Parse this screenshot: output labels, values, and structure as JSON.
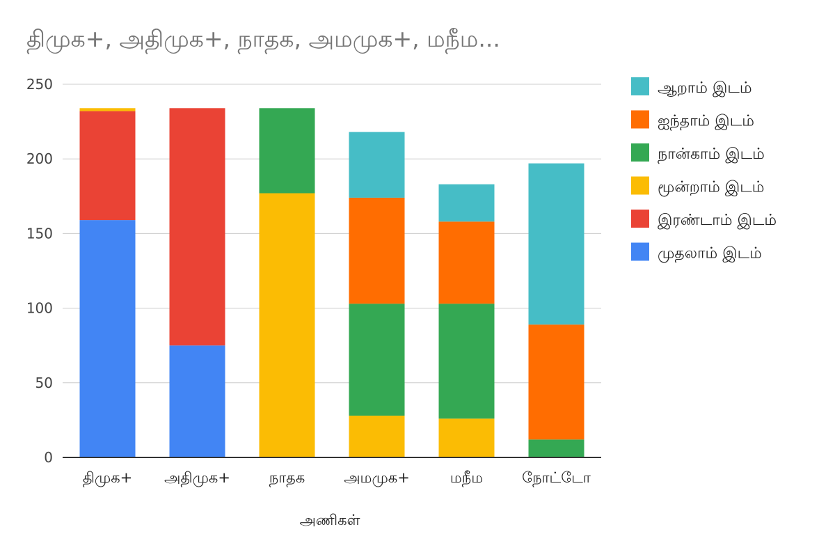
{
  "chart_data": {
    "type": "bar",
    "stacked": true,
    "title": "திமுக+, அதிமுக+, நாதக, அமமுக+, மநீம...",
    "xlabel": "அணிகள்",
    "ylabel": "",
    "ylim": [
      0,
      250
    ],
    "yticks": [
      0,
      50,
      100,
      150,
      200,
      250
    ],
    "grid": true,
    "legend_position": "right",
    "categories": [
      "திமுக+",
      "அதிமுக+",
      "நாதக",
      "அமமுக+",
      "மநீம",
      "நோட்டோ"
    ],
    "series": [
      {
        "name": "முதலாம் இடம்",
        "color": "#4285F4",
        "values": [
          159,
          75,
          0,
          0,
          0,
          0
        ]
      },
      {
        "name": "இரண்டாம் இடம்",
        "color": "#EA4335",
        "values": [
          73,
          159,
          0,
          0,
          0,
          0
        ]
      },
      {
        "name": "மூன்றாம் இடம்",
        "color": "#FBBC04",
        "values": [
          2,
          0,
          177,
          28,
          26,
          0
        ]
      },
      {
        "name": "நான்காம் இடம்",
        "color": "#34A853",
        "values": [
          0,
          0,
          57,
          75,
          77,
          12
        ]
      },
      {
        "name": "ஐந்தாம் இடம்",
        "color": "#FF6D01",
        "values": [
          0,
          0,
          0,
          71,
          55,
          77
        ]
      },
      {
        "name": "ஆறாம் இடம்",
        "color": "#46BDC6",
        "values": [
          0,
          0,
          0,
          44,
          25,
          108
        ]
      }
    ]
  }
}
